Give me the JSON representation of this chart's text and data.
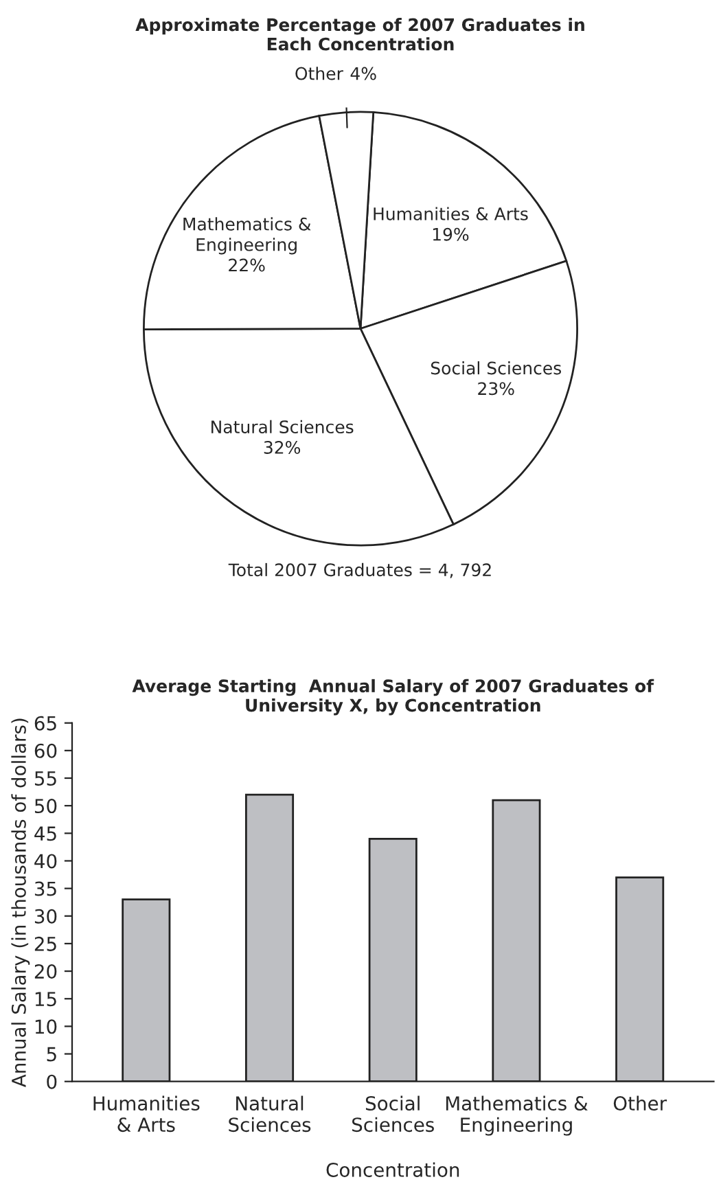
{
  "chart_data": [
    {
      "type": "pie",
      "title": "Approximate Percentage of 2007 Graduates in\nEach Concentration",
      "categories": [
        "Humanities & Arts",
        "Social Sciences",
        "Natural Sciences",
        "Mathematics &\nEngineering",
        "Other"
      ],
      "values": [
        19,
        23,
        32,
        22,
        4
      ],
      "value_labels": [
        "19%",
        "23%",
        "32%",
        "22%",
        "4%"
      ],
      "colors": [
        "#ffffff",
        "#ffffff",
        "#ffffff",
        "#ffffff",
        "#ffffff"
      ],
      "annotations": [
        "Total 2007 Graduates = 4, 792"
      ],
      "legend": false
    },
    {
      "type": "bar",
      "title": "Average Starting  Annual Salary of 2007 Graduates of\nUniversity X, by Concentration",
      "categories": [
        "Humanities\n& Arts",
        "Natural\nSciences",
        "Social\nSciences",
        "Mathematics &\nEngineering",
        "Other"
      ],
      "values": [
        33,
        52,
        44,
        51,
        37
      ],
      "color": "#bebfc3",
      "xlabel": "Concentration",
      "ylabel": "Annual Salary (in thousands of dollars)",
      "ylim": [
        0,
        65
      ],
      "yticks": [
        0,
        5,
        10,
        15,
        20,
        25,
        30,
        35,
        40,
        45,
        50,
        55,
        60,
        65
      ],
      "grid": false,
      "legend": false
    }
  ]
}
